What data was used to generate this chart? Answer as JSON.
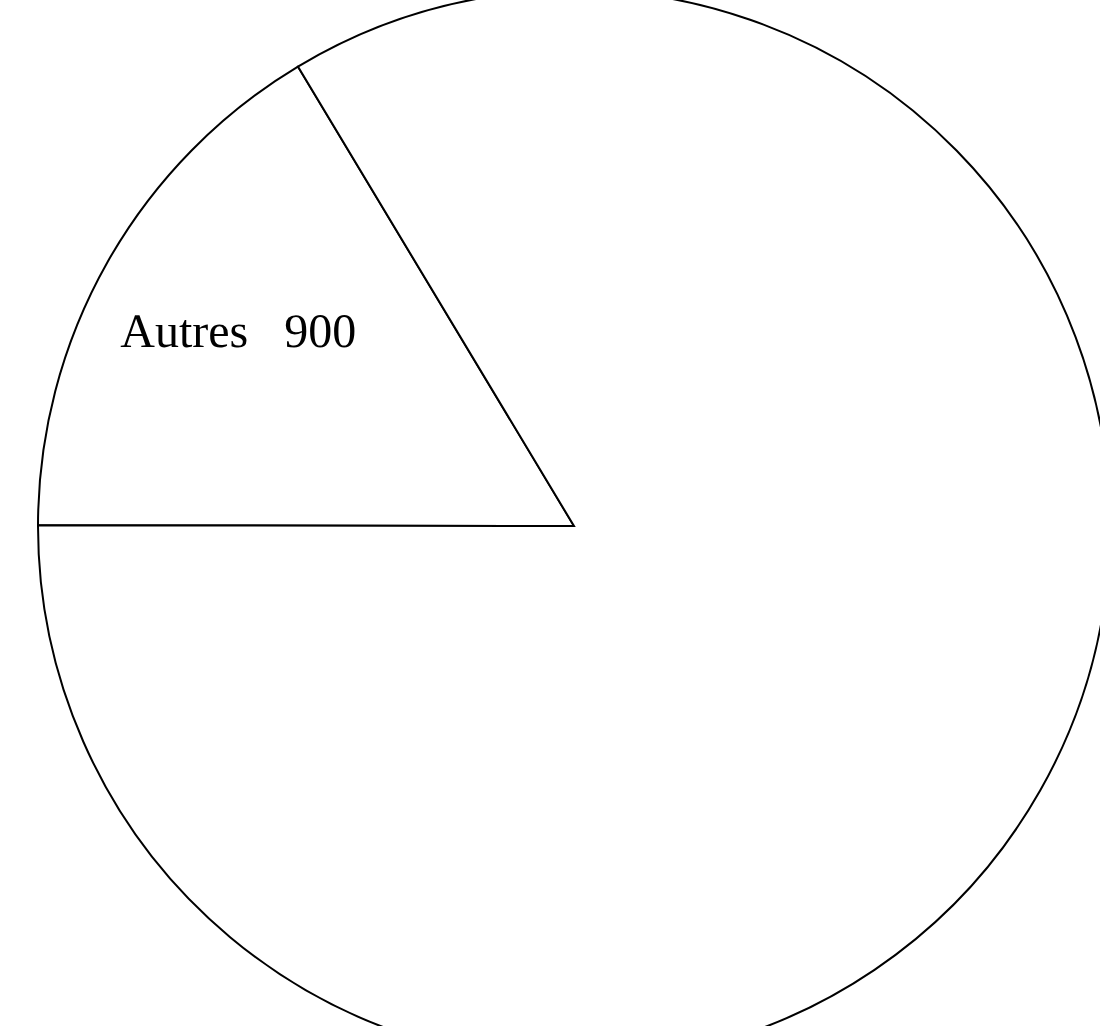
{
  "chart_data": {
    "type": "pie",
    "categories": [
      "Autres",
      null
    ],
    "values": [
      900,
      4600
    ],
    "value_labels": [
      "900",
      null
    ],
    "colors": [
      "#ffffff",
      "#ffffff"
    ]
  }
}
